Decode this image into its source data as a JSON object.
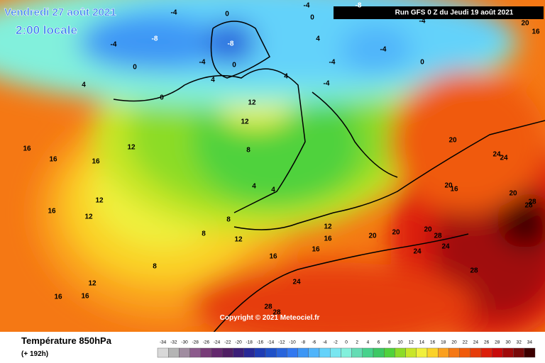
{
  "header": {
    "date": "Vendredi 27 août 2021",
    "time": "2:00 locale",
    "run": "Run GFS 0 Z du Jeudi 19 août 2021"
  },
  "copyright": "Copyright © 2021 Meteociel.fr",
  "footer": {
    "title": "Température 850hPa",
    "lead": "(+ 192h)"
  },
  "map_labels": [
    0,
    -4,
    -8,
    -4,
    -4,
    -4,
    -8,
    0,
    0,
    -8,
    -4,
    0,
    4,
    0,
    4,
    -4,
    -4,
    0,
    -4,
    4,
    4,
    12,
    12,
    12,
    16,
    16,
    16,
    12,
    12,
    16,
    8,
    4,
    4,
    8,
    8,
    12,
    12,
    16,
    16,
    16,
    20,
    20,
    20,
    28,
    24,
    24,
    20,
    24,
    24,
    20,
    16,
    20,
    28,
    28,
    28,
    24,
    28,
    28,
    12,
    16,
    16,
    8,
    20,
    16
  ],
  "scale": {
    "ticks": [
      -34,
      -32,
      -30,
      -28,
      -26,
      -24,
      -22,
      -20,
      -18,
      -16,
      -14,
      -12,
      -10,
      -8,
      -6,
      -4,
      -2,
      0,
      2,
      4,
      6,
      8,
      10,
      12,
      14,
      16,
      18,
      20,
      22,
      24,
      26,
      28,
      30,
      32,
      34
    ],
    "colors": [
      "#d8d8d8",
      "#b4b4b4",
      "#a08ca0",
      "#8c5a8c",
      "#783c78",
      "#64286e",
      "#501e64",
      "#3c1e78",
      "#282896",
      "#1e3cb4",
      "#1e50c8",
      "#2864dc",
      "#3278f0",
      "#3c96f5",
      "#50b4fa",
      "#64d2fa",
      "#78e6f0",
      "#82f0dc",
      "#64dcb4",
      "#46d28c",
      "#3cc864",
      "#50d23c",
      "#8cdc28",
      "#c8e628",
      "#f0f03c",
      "#fad228",
      "#faa01e",
      "#f57814",
      "#f05a0a",
      "#e63c0a",
      "#dc1e0a",
      "#c80a0a",
      "#a00a0a",
      "#780a0a",
      "#3c0000"
    ]
  }
}
